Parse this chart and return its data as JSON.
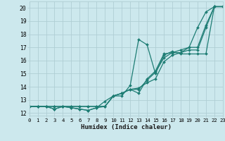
{
  "xlabel": "Humidex (Indice chaleur)",
  "xlim": [
    0,
    23
  ],
  "ylim": [
    11.8,
    20.5
  ],
  "xticks": [
    0,
    1,
    2,
    3,
    4,
    5,
    6,
    7,
    8,
    9,
    10,
    11,
    12,
    13,
    14,
    15,
    16,
    17,
    18,
    19,
    20,
    21,
    22,
    23
  ],
  "yticks": [
    12,
    13,
    14,
    15,
    16,
    17,
    18,
    19,
    20
  ],
  "bg_color": "#cce8ed",
  "grid_color": "#b0ced4",
  "line_color": "#1e7d74",
  "x_values": [
    0,
    1,
    2,
    3,
    4,
    5,
    6,
    7,
    8,
    9,
    10,
    11,
    12,
    13,
    14,
    15,
    16,
    17,
    18,
    19,
    20,
    21,
    22,
    23
  ],
  "series": [
    [
      12.5,
      12.5,
      12.5,
      12.5,
      12.5,
      12.5,
      12.5,
      12.5,
      12.5,
      12.5,
      13.3,
      13.5,
      13.8,
      13.5,
      14.6,
      15.2,
      16.5,
      16.6,
      16.6,
      17.0,
      18.5,
      19.7,
      20.1,
      20.1
    ],
    [
      12.5,
      12.5,
      12.5,
      12.5,
      12.5,
      12.5,
      12.5,
      12.5,
      12.5,
      12.5,
      13.3,
      13.5,
      13.8,
      13.9,
      14.3,
      14.6,
      15.9,
      16.4,
      16.6,
      16.8,
      16.8,
      18.5,
      20.1,
      20.1
    ],
    [
      12.5,
      12.5,
      12.5,
      12.3,
      12.5,
      12.4,
      12.3,
      12.2,
      12.4,
      12.5,
      13.3,
      13.5,
      13.8,
      13.8,
      14.5,
      15.1,
      16.2,
      16.6,
      16.8,
      17.0,
      17.0,
      18.7,
      20.1,
      20.1
    ],
    [
      12.5,
      12.5,
      12.5,
      12.3,
      12.5,
      12.4,
      12.3,
      12.2,
      12.4,
      12.9,
      13.3,
      13.3,
      14.1,
      17.6,
      17.2,
      15.0,
      16.4,
      16.7,
      16.5,
      16.5,
      16.5,
      16.5,
      20.1,
      20.1
    ]
  ]
}
